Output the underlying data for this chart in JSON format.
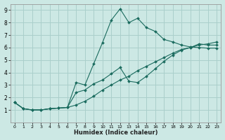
{
  "title": "",
  "xlabel": "Humidex (Indice chaleur)",
  "ylabel": "",
  "background_color": "#cce8e4",
  "grid_color": "#aacfcb",
  "line_color": "#1a6b5e",
  "xlim": [
    -0.5,
    23.5
  ],
  "ylim": [
    0,
    9.5
  ],
  "xticks": [
    0,
    1,
    2,
    3,
    4,
    5,
    6,
    7,
    8,
    9,
    10,
    11,
    12,
    13,
    14,
    15,
    16,
    17,
    18,
    19,
    20,
    21,
    22,
    23
  ],
  "yticks": [
    1,
    2,
    3,
    4,
    5,
    6,
    7,
    8,
    9
  ],
  "lines": [
    {
      "x": [
        0,
        1,
        2,
        3,
        4,
        5,
        6,
        7,
        8,
        9,
        10,
        11,
        12,
        13,
        14,
        15,
        16,
        17,
        18,
        19,
        20,
        21,
        22,
        23
      ],
      "y": [
        1.6,
        1.1,
        1.0,
        1.0,
        1.1,
        1.15,
        1.2,
        3.2,
        3.0,
        4.7,
        6.4,
        8.2,
        9.1,
        8.0,
        8.35,
        7.6,
        7.3,
        6.65,
        6.45,
        6.2,
        6.05,
        6.0,
        5.95,
        5.95
      ]
    },
    {
      "x": [
        0,
        1,
        2,
        3,
        4,
        5,
        6,
        7,
        8,
        9,
        10,
        11,
        12,
        13,
        14,
        15,
        16,
        17,
        18,
        19,
        20,
        21,
        22,
        23
      ],
      "y": [
        1.6,
        1.1,
        1.0,
        1.0,
        1.1,
        1.15,
        1.2,
        2.4,
        2.6,
        3.1,
        3.4,
        3.9,
        4.4,
        3.3,
        3.2,
        3.7,
        4.3,
        4.9,
        5.4,
        5.8,
        6.0,
        6.3,
        6.2,
        6.2
      ]
    },
    {
      "x": [
        0,
        1,
        2,
        3,
        4,
        5,
        6,
        7,
        8,
        9,
        10,
        11,
        12,
        13,
        14,
        15,
        16,
        17,
        18,
        19,
        20,
        21,
        22,
        23
      ],
      "y": [
        1.6,
        1.1,
        1.0,
        1.0,
        1.1,
        1.15,
        1.2,
        1.4,
        1.7,
        2.1,
        2.6,
        3.0,
        3.4,
        3.7,
        4.15,
        4.5,
        4.85,
        5.2,
        5.55,
        5.85,
        6.0,
        6.2,
        6.3,
        6.45
      ]
    }
  ]
}
